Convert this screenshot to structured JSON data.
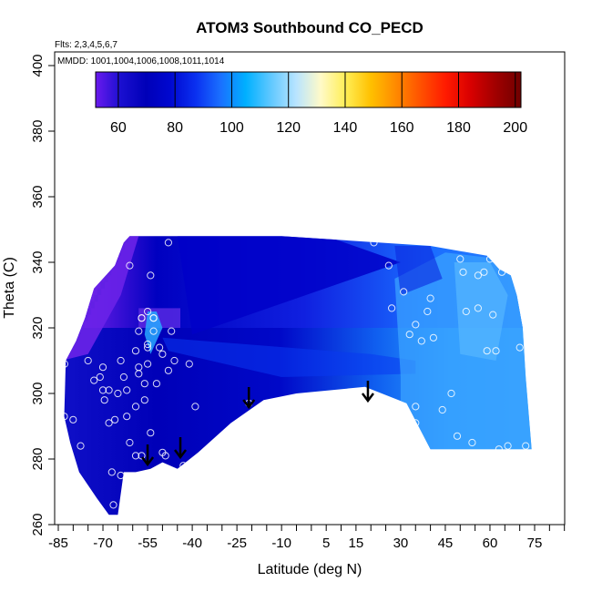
{
  "chart_data": {
    "type": "heatmap",
    "title": "ATOM3 Southbound CO_PECD",
    "flights_note": "Flts: 2,3,4,5,6,7",
    "dates_note": "MMDD: 1001,1004,1006,1008,1011,1014",
    "xlabel": "Latitude (deg N)",
    "ylabel": "Theta (C)",
    "xlim": [
      -85,
      85
    ],
    "ylim": [
      260,
      405
    ],
    "x_ticks": [
      "-85",
      "-70",
      "-55",
      "-40",
      "-25",
      "-10",
      "5",
      "15",
      "30",
      "45",
      "60",
      "75"
    ],
    "x_tick_values": [
      -85,
      -70,
      -55,
      -40,
      -25,
      -10,
      5,
      15,
      30,
      45,
      60,
      75
    ],
    "x_minor_ticks": [
      -80,
      -75,
      -65,
      -60,
      -50,
      -45,
      -35,
      -30,
      -20,
      -15,
      -5,
      0,
      10,
      20,
      25,
      35,
      40,
      50,
      55,
      65,
      70,
      80,
      85
    ],
    "y_ticks": [
      "260",
      "280",
      "300",
      "320",
      "340",
      "360",
      "380",
      "400"
    ],
    "y_tick_values": [
      260,
      280,
      300,
      320,
      340,
      360,
      380,
      400
    ],
    "colorbar": {
      "range": [
        52,
        202
      ],
      "ticks": [
        "60",
        "80",
        "100",
        "120",
        "140",
        "160",
        "180",
        "200"
      ],
      "tick_values": [
        60,
        80,
        100,
        120,
        140,
        160,
        180,
        200
      ],
      "colors": [
        "#6a1aee",
        "#1a0fd0",
        "#0000b8",
        "#0008d0",
        "#0a30f0",
        "#1a70ff",
        "#00b0ff",
        "#60c8ff",
        "#b8e4ff",
        "#fffac8",
        "#ffee55",
        "#ffc000",
        "#ff8a00",
        "#ff5000",
        "#ff1a00",
        "#d80000",
        "#a00000",
        "#700000"
      ]
    },
    "tropopause_arrows_lat": [
      -55,
      -44,
      -21,
      19
    ],
    "coverage_polygon": [
      [
        -82.5,
        310
      ],
      [
        -79,
        316
      ],
      [
        -76,
        323
      ],
      [
        -73,
        332
      ],
      [
        -66,
        339
      ],
      [
        -63,
        346
      ],
      [
        -61,
        348
      ],
      [
        -10,
        348
      ],
      [
        40,
        345
      ],
      [
        59,
        342
      ],
      [
        63,
        338
      ],
      [
        67,
        336
      ],
      [
        69,
        330
      ],
      [
        71,
        320
      ],
      [
        72,
        305
      ],
      [
        74,
        283
      ],
      [
        40,
        283
      ],
      [
        32,
        297
      ],
      [
        18,
        302
      ],
      [
        -5,
        300
      ],
      [
        -16,
        298
      ],
      [
        -27,
        291
      ],
      [
        -38,
        282
      ],
      [
        -45,
        277
      ],
      [
        -50,
        279
      ],
      [
        -54,
        277
      ],
      [
        -59,
        276
      ],
      [
        -63,
        276
      ],
      [
        -65,
        263
      ],
      [
        -68,
        263
      ],
      [
        -72,
        268
      ],
      [
        -78,
        276
      ],
      [
        -81,
        285
      ],
      [
        -83,
        293
      ]
    ],
    "obs_points": [
      [
        -82.9,
        309
      ],
      [
        -83,
        293
      ],
      [
        -80,
        292
      ],
      [
        -77.5,
        284
      ],
      [
        -75,
        310
      ],
      [
        -73,
        304
      ],
      [
        -71,
        305
      ],
      [
        -70,
        308
      ],
      [
        -70,
        301
      ],
      [
        -69.5,
        298
      ],
      [
        -68,
        291
      ],
      [
        -68,
        301
      ],
      [
        -67,
        276
      ],
      [
        -66.5,
        266
      ],
      [
        -66,
        292
      ],
      [
        -65,
        300
      ],
      [
        -64,
        275
      ],
      [
        -64,
        310
      ],
      [
        -63,
        305
      ],
      [
        -62,
        293
      ],
      [
        -62,
        301
      ],
      [
        -61,
        285
      ],
      [
        -61,
        339
      ],
      [
        -60,
        274
      ],
      [
        -59,
        313
      ],
      [
        -59,
        281
      ],
      [
        -59,
        296
      ],
      [
        -58,
        306
      ],
      [
        -58,
        308
      ],
      [
        -58,
        319
      ],
      [
        -57,
        323
      ],
      [
        -57,
        281
      ],
      [
        -57,
        323
      ],
      [
        -56,
        303
      ],
      [
        -56,
        298
      ],
      [
        -55,
        314
      ],
      [
        -55,
        309
      ],
      [
        -55,
        315
      ],
      [
        -55,
        325
      ],
      [
        -54,
        336
      ],
      [
        -54,
        288
      ],
      [
        -53,
        319
      ],
      [
        -53,
        323
      ],
      [
        -53,
        323
      ],
      [
        -52,
        303
      ],
      [
        -51,
        314
      ],
      [
        -50,
        282
      ],
      [
        -50,
        312
      ],
      [
        -49,
        281
      ],
      [
        -48,
        307
      ],
      [
        -48,
        346
      ],
      [
        -47,
        319
      ],
      [
        -46,
        310
      ],
      [
        -43,
        278
      ],
      [
        -41,
        309
      ],
      [
        -39,
        296
      ],
      [
        -21,
        297
      ],
      [
        21,
        346
      ],
      [
        26,
        339
      ],
      [
        27,
        326
      ],
      [
        28,
        297
      ],
      [
        31,
        331
      ],
      [
        33,
        318
      ],
      [
        35,
        296
      ],
      [
        35,
        321
      ],
      [
        35,
        291
      ],
      [
        37,
        316
      ],
      [
        39,
        325
      ],
      [
        40,
        329
      ],
      [
        41,
        317
      ],
      [
        44,
        295
      ],
      [
        47,
        300
      ],
      [
        49,
        287
      ],
      [
        50,
        341
      ],
      [
        51,
        337
      ],
      [
        52,
        325
      ],
      [
        54,
        285
      ],
      [
        56,
        336
      ],
      [
        56,
        326
      ],
      [
        58,
        337
      ],
      [
        59,
        313
      ],
      [
        60,
        341
      ],
      [
        61,
        324
      ],
      [
        62,
        313
      ],
      [
        63,
        283
      ],
      [
        64,
        337
      ],
      [
        66,
        284
      ],
      [
        69,
        337
      ],
      [
        70,
        314
      ],
      [
        72,
        284
      ]
    ],
    "field_description_colors": {
      "background_low": "#0000b8",
      "strat_upper": "#0010d8",
      "tropical_high": "#1e90ff",
      "light_blue": "#4aa8ff"
    }
  }
}
